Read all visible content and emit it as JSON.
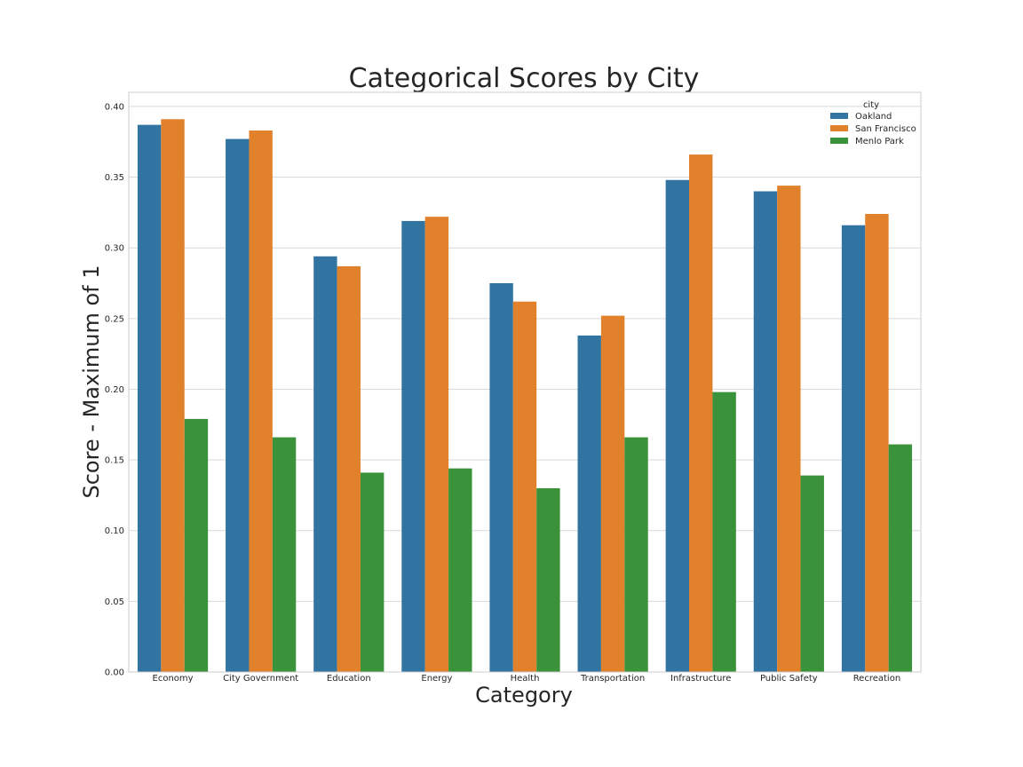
{
  "chart_data": {
    "type": "bar",
    "title": "Categorical Scores by City",
    "xlabel": "Category",
    "ylabel": "Score - Maximum of 1",
    "ylim": [
      0,
      0.41
    ],
    "yticks": [
      "0.00",
      "0.05",
      "0.10",
      "0.15",
      "0.20",
      "0.25",
      "0.30",
      "0.35",
      "0.40"
    ],
    "grid": true,
    "legend_title": "city",
    "legend_position": "top-right",
    "categories": [
      "Economy",
      "City Government",
      "Education",
      "Energy",
      "Health",
      "Transportation",
      "Infrastructure",
      "Public Safety",
      "Recreation"
    ],
    "series": [
      {
        "name": "Oakland",
        "color": "#3274a1",
        "values": [
          0.387,
          0.377,
          0.294,
          0.319,
          0.275,
          0.238,
          0.348,
          0.34,
          0.316
        ]
      },
      {
        "name": "San Francisco",
        "color": "#e1812c",
        "values": [
          0.391,
          0.383,
          0.287,
          0.322,
          0.262,
          0.252,
          0.366,
          0.344,
          0.324
        ]
      },
      {
        "name": "Menlo Park",
        "color": "#3a923a",
        "values": [
          0.179,
          0.166,
          0.141,
          0.144,
          0.13,
          0.166,
          0.198,
          0.139,
          0.161
        ]
      }
    ]
  }
}
